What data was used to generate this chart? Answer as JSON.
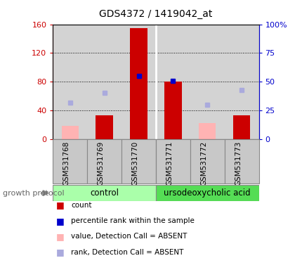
{
  "title": "GDS4372 / 1419042_at",
  "samples": [
    "GSM531768",
    "GSM531769",
    "GSM531770",
    "GSM531771",
    "GSM531772",
    "GSM531773"
  ],
  "count_values": [
    0,
    33,
    155,
    80,
    0,
    33
  ],
  "absent_value": [
    18,
    0,
    0,
    0,
    22,
    0
  ],
  "percentile_rank": [
    null,
    null,
    55,
    51,
    null,
    null
  ],
  "absent_rank": [
    32,
    40,
    null,
    null,
    30,
    43
  ],
  "count_color": "#cc0000",
  "absent_value_color": "#ffb3b3",
  "percentile_color": "#0000cc",
  "absent_rank_color": "#aaaadd",
  "control_label": "control",
  "treatment_label": "ursodeoxycholic acid",
  "control_color": "#aaffaa",
  "treatment_color": "#55dd55",
  "ylim_left": [
    0,
    160
  ],
  "ylim_right": [
    0,
    100
  ],
  "yticks_left": [
    0,
    40,
    80,
    120,
    160
  ],
  "ytick_labels_left": [
    "0",
    "40",
    "80",
    "120",
    "160"
  ],
  "yticks_right": [
    0,
    25,
    50,
    75,
    100
  ],
  "ytick_labels_right": [
    "0",
    "25",
    "50",
    "75",
    "100%"
  ],
  "group_protocol_label": "growth protocol",
  "plot_bg_color": "#d3d3d3",
  "sample_bg_color": "#c8c8c8",
  "border_color": "#888888"
}
